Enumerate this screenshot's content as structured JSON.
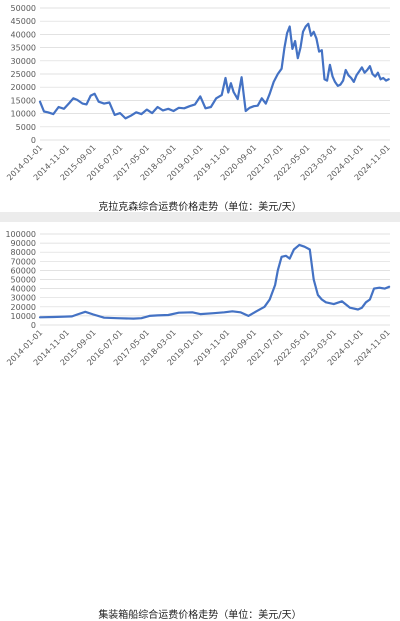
{
  "chart_data": [
    {
      "type": "line",
      "title": "克拉克森综合运费价格走势（单位：美元/天）",
      "xlabel": "",
      "ylabel": "",
      "ylim": [
        0,
        50000
      ],
      "y_ticks": [
        0,
        5000,
        10000,
        15000,
        20000,
        25000,
        30000,
        35000,
        40000,
        45000,
        50000
      ],
      "x_range": [
        "2014-01-01",
        "2024-11-30"
      ],
      "x_ticks": [
        "2014-01-01",
        "2014-11-01",
        "2015-09-01",
        "2016-07-01",
        "2017-05-01",
        "2018-03-01",
        "2019-01-01",
        "2019-11-01",
        "2020-09-01",
        "2021-07-01",
        "2022-05-01",
        "2023-03-01",
        "2024-01-01",
        "2024-11-01"
      ],
      "grid": true,
      "legend": "none",
      "color": "#4472c4",
      "series": [
        {
          "x": [
            "2014-01-01",
            "2014-02-15",
            "2014-04-01",
            "2014-06-01",
            "2014-08-01",
            "2014-10-01",
            "2014-12-01",
            "2015-01-15",
            "2015-03-01",
            "2015-05-01",
            "2015-06-15",
            "2015-08-01",
            "2015-09-15",
            "2015-11-01",
            "2016-01-01",
            "2016-03-01",
            "2016-05-01",
            "2016-07-01",
            "2016-09-01",
            "2016-11-01",
            "2017-01-01",
            "2017-03-01",
            "2017-05-01",
            "2017-07-01",
            "2017-09-01",
            "2017-11-01",
            "2018-01-01",
            "2018-03-01",
            "2018-05-01",
            "2018-07-01",
            "2018-09-01",
            "2018-11-01",
            "2019-01-01",
            "2019-03-01",
            "2019-05-01",
            "2019-07-01",
            "2019-09-01",
            "2019-10-15",
            "2019-11-15",
            "2019-12-15",
            "2020-01-15",
            "2020-03-01",
            "2020-04-15",
            "2020-06-01",
            "2020-07-15",
            "2020-09-01",
            "2020-10-15",
            "2020-12-01",
            "2021-01-15",
            "2021-03-01",
            "2021-04-15",
            "2021-06-01",
            "2021-07-15",
            "2021-08-15",
            "2021-09-15",
            "2021-10-15",
            "2021-11-15",
            "2021-12-15",
            "2022-01-15",
            "2022-02-15",
            "2022-03-15",
            "2022-04-15",
            "2022-05-15",
            "2022-06-15",
            "2022-07-15",
            "2022-08-15",
            "2022-09-15",
            "2022-10-15",
            "2022-11-15",
            "2022-12-15",
            "2023-01-15",
            "2023-02-15",
            "2023-03-15",
            "2023-04-15",
            "2023-05-15",
            "2023-06-15",
            "2023-07-15",
            "2023-08-15",
            "2023-09-15",
            "2023-10-15",
            "2023-11-15",
            "2023-12-15",
            "2024-01-15",
            "2024-02-15",
            "2024-03-15",
            "2024-04-15",
            "2024-05-15",
            "2024-06-15",
            "2024-07-15",
            "2024-08-15",
            "2024-09-15",
            "2024-10-15",
            "2024-11-15"
          ],
          "values": [
            14500,
            10800,
            10500,
            9800,
            12500,
            11800,
            14000,
            15800,
            15200,
            13800,
            13500,
            16800,
            17500,
            14500,
            13800,
            14200,
            9500,
            10200,
            8200,
            9200,
            10500,
            9800,
            11500,
            10200,
            12500,
            11200,
            11800,
            11000,
            12200,
            12000,
            12800,
            13500,
            16500,
            12000,
            12500,
            15800,
            17000,
            23500,
            18000,
            21500,
            18200,
            15500,
            23800,
            11000,
            12200,
            12800,
            13000,
            15800,
            13800,
            17500,
            22000,
            25000,
            27000,
            34800,
            40500,
            43000,
            34500,
            37500,
            31000,
            35000,
            41000,
            43000,
            44000,
            39500,
            41000,
            38500,
            33500,
            34000,
            23000,
            22500,
            28500,
            24000,
            22000,
            20500,
            21000,
            22500,
            26500,
            24500,
            23500,
            22000,
            24500,
            26000,
            27500,
            25500,
            26500,
            28000,
            25000,
            24000,
            25500,
            23000,
            23500,
            22500,
            23000
          ]
        }
      ]
    },
    {
      "type": "line",
      "title": "集装箱船综合运费价格走势（单位：美元/天）",
      "xlabel": "",
      "ylabel": "",
      "ylim": [
        0,
        100000
      ],
      "y_ticks": [
        0,
        10000,
        20000,
        30000,
        40000,
        50000,
        60000,
        70000,
        80000,
        90000,
        100000
      ],
      "x_range": [
        "2014-01-01",
        "2024-11-30"
      ],
      "x_ticks": [
        "2014-01-01",
        "2014-11-01",
        "2015-09-01",
        "2016-07-01",
        "2017-05-01",
        "2018-03-01",
        "2019-01-01",
        "2019-11-01",
        "2020-09-01",
        "2021-07-01",
        "2022-05-01",
        "2023-03-01",
        "2024-01-01",
        "2024-11-01"
      ],
      "grid": true,
      "legend": "none",
      "color": "#4472c4",
      "series": [
        {
          "x": [
            "2014-01-01",
            "2014-06-01",
            "2015-01-01",
            "2015-03-01",
            "2015-06-01",
            "2015-09-01",
            "2016-01-01",
            "2016-06-01",
            "2016-12-01",
            "2017-03-01",
            "2017-06-01",
            "2017-09-01",
            "2018-01-01",
            "2018-05-01",
            "2018-10-01",
            "2019-01-01",
            "2019-06-01",
            "2019-10-01",
            "2020-01-01",
            "2020-04-01",
            "2020-07-01",
            "2020-10-01",
            "2021-01-01",
            "2021-03-01",
            "2021-05-01",
            "2021-06-01",
            "2021-07-15",
            "2021-09-01",
            "2021-10-15",
            "2021-12-01",
            "2022-02-01",
            "2022-04-01",
            "2022-06-01",
            "2022-07-15",
            "2022-09-01",
            "2022-10-15",
            "2022-12-01",
            "2023-03-01",
            "2023-06-01",
            "2023-09-01",
            "2023-12-01",
            "2024-01-15",
            "2024-03-01",
            "2024-04-15",
            "2024-06-01",
            "2024-08-01",
            "2024-10-01",
            "2024-11-20"
          ],
          "values": [
            8500,
            8800,
            9500,
            11500,
            14500,
            11500,
            8000,
            7500,
            7000,
            7500,
            10000,
            10500,
            11000,
            13500,
            14000,
            12000,
            13000,
            14000,
            15000,
            14000,
            10000,
            15000,
            20000,
            28000,
            44000,
            60000,
            75000,
            76000,
            73000,
            83000,
            88000,
            86000,
            83000,
            50000,
            33000,
            28000,
            25000,
            23000,
            26000,
            19000,
            17000,
            19000,
            25000,
            28000,
            40000,
            41000,
            40000,
            42000
          ]
        }
      ]
    }
  ]
}
